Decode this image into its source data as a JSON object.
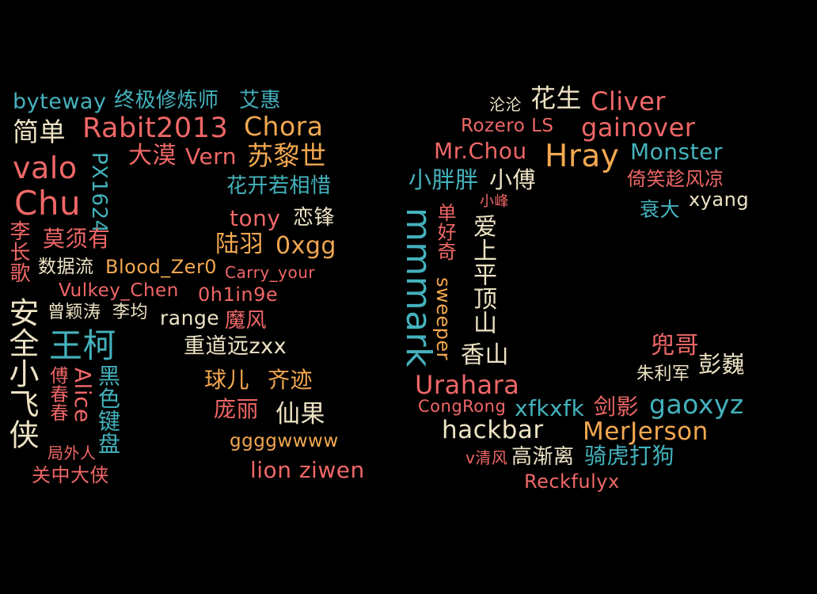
{
  "colors": {
    "background": "#000000",
    "red": "#F06767",
    "orange": "#F2A850",
    "teal": "#44B2BD",
    "cream": "#EDE3C4"
  },
  "words": {
    "byteway": "byteway",
    "zhongji": "终极修炼师",
    "aihui": "艾惠",
    "jiandan": "简单",
    "rabit": "Rabit2013",
    "chora": "Chora",
    "valo": "valo",
    "px1624": "PX1624",
    "damo": "大漠",
    "vern": "Vern",
    "sulishi": "苏黎世",
    "chu": "Chu",
    "huakai": "花开若相惜",
    "tony": "tony",
    "lianfeng": "恋锋",
    "lichangge": "李长歌",
    "moxuyou": "莫须有",
    "luyu": "陆羽",
    "oxgg": "0xgg",
    "shujuliu": "数据流",
    "blood": "Blood_Zer0",
    "carry": "Carry_your",
    "vulkey": "Vulkey_Chen",
    "ohin9e": "0h1in9e",
    "anquan": "安全小飞侠",
    "zengyingtao": "曾颖涛",
    "lijun": "李均",
    "range": "range",
    "mofeng": "魔风",
    "wangke": "王柯",
    "chongdao": "重道远zxx",
    "chunchun": "傅春春",
    "alice": "Alice",
    "heisejianpan": "黑色键盘",
    "qiuer": "球儿",
    "qiji": "齐迹",
    "pangli": "庞丽",
    "xianguo": "仙果",
    "juwairen": "局外人",
    "ggggwwww": "ggggwwww",
    "guanzhong": "关中大侠",
    "lionziwen": "lion ziwen",
    "lunlun": "沦沦",
    "huasheng": "花生",
    "cliver": "Cliver",
    "rozero": "Rozero LS",
    "gainover": "gainover",
    "mrchou": "Mr.Chou",
    "hray": "Hray",
    "monster": "Monster",
    "xiaopangpang": "小胖胖",
    "xiaofu": "小傅",
    "yixiao": "倚笑趁风凉",
    "xiaofeng": "小峰",
    "shuaida": "衰大",
    "xyang": "xyang",
    "mmmark": "mmmark",
    "danhaoqi": "单好奇",
    "aishang": "爱上平顶山",
    "sweeper": "sweeper",
    "xiangshan": "香山",
    "douge": "兜哥",
    "pengwei": "彭巍",
    "zhulijun": "朱利军",
    "urahara": "Urahara",
    "congrong": "CongRong",
    "xfkxfk": "xfkxfk",
    "jianying": "剑影",
    "gaoxyz": "gaoxyz",
    "hackbar": "hackbar",
    "merjerson": "MerJerson",
    "vqingfeng": "v清风",
    "gaojianli": "高渐离",
    "qihudagou": "骑虎打狗",
    "reckfulyx": "Reckfulyx"
  }
}
